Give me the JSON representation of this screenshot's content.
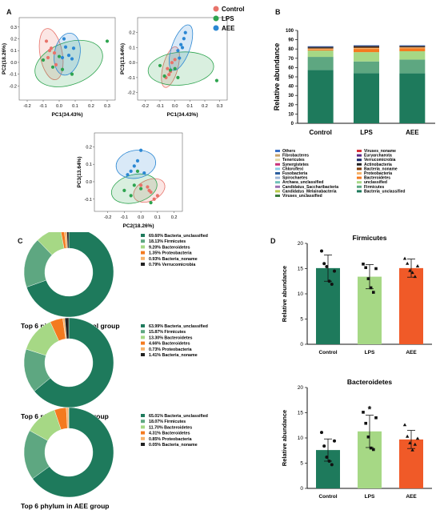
{
  "panel_labels": {
    "a": "A",
    "b": "B",
    "c": "C",
    "d": "D"
  },
  "group_colors": {
    "Control": "#e8736a",
    "LPS": "#2ea44f",
    "AEE": "#2b87d3"
  },
  "chart_data": [
    {
      "panel": "A",
      "type": "scatter",
      "xlabel": "PC1(34.43%)",
      "ylabel": "PC2(18.26%)",
      "xlim": [
        -0.25,
        0.35
      ],
      "ylim": [
        -0.32,
        0.38
      ],
      "xticks": [
        -0.2,
        -0.1,
        0.0,
        0.1,
        0.2,
        0.3
      ],
      "yticks": [
        -0.2,
        -0.1,
        0.0,
        0.1,
        0.2,
        0.3
      ],
      "legend": [
        "Control",
        "LPS",
        "AEE"
      ],
      "series": [
        {
          "name": "Control",
          "points": [
            [
              -0.08,
              0.18
            ],
            [
              -0.05,
              0.12
            ],
            [
              -0.03,
              0.08
            ],
            [
              -0.07,
              0.04
            ],
            [
              -0.02,
              -0.02
            ],
            [
              -0.06,
              0.1
            ]
          ],
          "ellipse": {
            "cx": -0.05,
            "cy": 0.07,
            "rx": 0.07,
            "ry": 0.22,
            "rot": -10
          }
        },
        {
          "name": "LPS",
          "points": [
            [
              -0.1,
              0.02
            ],
            [
              0.02,
              -0.06
            ],
            [
              0.08,
              -0.1
            ],
            [
              0.3,
              0.18
            ],
            [
              -0.04,
              -0.04
            ],
            [
              0.0,
              0.05
            ]
          ],
          "ellipse": {
            "cx": 0.06,
            "cy": -0.01,
            "rx": 0.22,
            "ry": 0.18,
            "rot": -20
          }
        },
        {
          "name": "AEE",
          "points": [
            [
              0.02,
              0.04
            ],
            [
              0.06,
              0.06
            ],
            [
              0.09,
              0.12
            ],
            [
              0.04,
              0.13
            ],
            [
              0.08,
              0.03
            ],
            [
              0.03,
              0.2
            ]
          ],
          "ellipse": {
            "cx": 0.05,
            "cy": 0.07,
            "rx": 0.08,
            "ry": 0.18,
            "rot": 10
          }
        }
      ]
    },
    {
      "panel": "A",
      "type": "scatter",
      "xlabel": "PC1(34.43%)",
      "ylabel": "PC3(13.64%)",
      "xlim": [
        -0.25,
        0.35
      ],
      "ylim": [
        -0.25,
        0.3
      ],
      "xticks": [
        -0.2,
        -0.1,
        0.0,
        0.1,
        0.2,
        0.3
      ],
      "yticks": [
        -0.2,
        -0.1,
        0.0,
        0.1,
        0.2
      ],
      "series": [
        {
          "name": "Control",
          "points": [
            [
              -0.05,
              -0.04
            ],
            [
              -0.03,
              -0.06
            ],
            [
              -0.02,
              0.0
            ],
            [
              -0.06,
              -0.1
            ],
            [
              0.0,
              0.02
            ],
            [
              -0.04,
              -0.08
            ]
          ],
          "ellipse": {
            "cx": -0.03,
            "cy": -0.03,
            "rx": 0.05,
            "ry": 0.14,
            "rot": 15
          }
        },
        {
          "name": "LPS",
          "points": [
            [
              -0.1,
              -0.02
            ],
            [
              -0.07,
              -0.09
            ],
            [
              0.02,
              -0.1
            ],
            [
              0.28,
              -0.12
            ],
            [
              -0.03,
              -0.05
            ],
            [
              0.0,
              -0.04
            ]
          ],
          "ellipse": {
            "cx": 0.04,
            "cy": -0.04,
            "rx": 0.22,
            "ry": 0.11,
            "rot": -5
          }
        },
        {
          "name": "AEE",
          "points": [
            [
              0.02,
              0.08
            ],
            [
              0.04,
              0.12
            ],
            [
              0.06,
              0.16
            ],
            [
              0.03,
              0.03
            ],
            [
              0.07,
              0.2
            ],
            [
              0.05,
              0.1
            ]
          ],
          "ellipse": {
            "cx": 0.04,
            "cy": 0.1,
            "rx": 0.06,
            "ry": 0.16,
            "rot": 20
          }
        }
      ]
    },
    {
      "panel": "A",
      "type": "scatter",
      "xlabel": "PC2(18.26%)",
      "ylabel": "PC3(13.64%)",
      "xlim": [
        -0.28,
        0.25
      ],
      "ylim": [
        -0.17,
        0.28
      ],
      "xticks": [
        -0.2,
        -0.1,
        0.0,
        0.1,
        0.2
      ],
      "yticks": [
        -0.1,
        0.0,
        0.1,
        0.2
      ],
      "series": [
        {
          "name": "Control",
          "points": [
            [
              0.04,
              -0.03
            ],
            [
              0.06,
              -0.06
            ],
            [
              0.1,
              -0.08
            ],
            [
              0.0,
              -0.02
            ],
            [
              0.08,
              -0.1
            ],
            [
              0.05,
              -0.05
            ]
          ],
          "ellipse": {
            "cx": 0.05,
            "cy": -0.05,
            "rx": 0.1,
            "ry": 0.06,
            "rot": -25
          }
        },
        {
          "name": "LPS",
          "points": [
            [
              -0.1,
              -0.05
            ],
            [
              -0.04,
              -0.02
            ],
            [
              0.0,
              -0.04
            ],
            [
              -0.02,
              0.06
            ],
            [
              0.06,
              -0.12
            ],
            [
              -0.06,
              -0.08
            ]
          ],
          "ellipse": {
            "cx": -0.04,
            "cy": -0.04,
            "rx": 0.14,
            "ry": 0.08,
            "rot": -15
          }
        },
        {
          "name": "AEE",
          "points": [
            [
              -0.06,
              0.06
            ],
            [
              -0.02,
              0.12
            ],
            [
              0.0,
              0.18
            ],
            [
              -0.04,
              0.09
            ],
            [
              0.02,
              0.05
            ],
            [
              -0.08,
              0.04
            ]
          ],
          "ellipse": {
            "cx": -0.03,
            "cy": 0.1,
            "rx": 0.12,
            "ry": 0.08,
            "rot": -10
          }
        }
      ]
    },
    {
      "panel": "B",
      "type": "bar",
      "stacked": true,
      "categories": [
        "Control",
        "LPS",
        "AEE"
      ],
      "ylabel": "Relative abundance",
      "ylim": [
        0,
        100
      ],
      "yticks": [
        0,
        10,
        20,
        30,
        40,
        50,
        60,
        70,
        80,
        90,
        100
      ],
      "series": [
        {
          "name": "Bacteria_unclassified",
          "values": [
            57.5,
            54.0,
            53.8
          ],
          "color": "#1e7a5c"
        },
        {
          "name": "Firmicutes",
          "values": [
            14.0,
            12.6,
            14.8
          ],
          "color": "#5ea781"
        },
        {
          "name": "unclassified",
          "values": [
            6.8,
            10.0,
            9.0
          ],
          "color": "#a6d885"
        },
        {
          "name": "Bacteroidetes",
          "values": [
            1.2,
            3.5,
            3.3
          ],
          "color": "#f47a1f"
        },
        {
          "name": "Proteobacteria",
          "values": [
            0.9,
            1.0,
            0.8
          ],
          "color": "#f6b26b"
        },
        {
          "name": "Bacteria_noname",
          "values": [
            0.8,
            1.1,
            0.6
          ],
          "color": "#7a3b0c"
        },
        {
          "name": "Actinobacteria",
          "values": [
            0.8,
            0.9,
            0.8
          ],
          "color": "#222222"
        },
        {
          "name": "Verrucomicrobia",
          "values": [
            0.7,
            0.5,
            0.4
          ],
          "color": "#1b2a6b"
        },
        {
          "name": "Others",
          "values": [
            0.3,
            0.4,
            0.5
          ],
          "color": "#3a6fc4"
        }
      ],
      "legend_left": [
        {
          "name": "Others",
          "color": "#3a6fc4"
        },
        {
          "name": "Fibrobacteres",
          "color": "#c9a46b"
        },
        {
          "name": "Tenericutes",
          "color": "#e4d9a5"
        },
        {
          "name": "Synergistetes",
          "color": "#c8327a"
        },
        {
          "name": "Chloroflexi",
          "color": "#8ed1e8"
        },
        {
          "name": "Fusobacteria",
          "color": "#2b5e9e"
        },
        {
          "name": "Spirochaetes",
          "color": "#9fb7d8"
        },
        {
          "name": "Archaea_unclassified",
          "color": "#6fc0b8"
        },
        {
          "name": "Candidatus_Saccharibacteria",
          "color": "#9c6fb1"
        },
        {
          "name": "Candidatus_Melainabacteria",
          "color": "#b7c94a"
        },
        {
          "name": "Viruses_unclassified",
          "color": "#3c7a3e"
        }
      ],
      "legend_right": [
        {
          "name": "Viruses_noname",
          "color": "#d8323a"
        },
        {
          "name": "Euryarchaeota",
          "color": "#5b2a86"
        },
        {
          "name": "Verrucomicrobia",
          "color": "#1b2a6b"
        },
        {
          "name": "Actinobacteria",
          "color": "#222222"
        },
        {
          "name": "Bacteria_noname",
          "color": "#7a3b0c"
        },
        {
          "name": "Proteobacteria",
          "color": "#f6b26b"
        },
        {
          "name": "Bacteroidetes",
          "color": "#f47a1f"
        },
        {
          "name": "unclassified",
          "color": "#a6d885"
        },
        {
          "name": "Firmicutes",
          "color": "#5ea781"
        },
        {
          "name": "Bacteria_unclassified",
          "color": "#1e7a5c"
        }
      ]
    },
    {
      "panel": "C",
      "type": "pie",
      "title": "Top 6 phylum in Control group",
      "slices": [
        {
          "pct": 69.6,
          "label": "Bacteria_unclassified",
          "color": "#1e7a5c"
        },
        {
          "pct": 18.13,
          "label": "Firmicutes",
          "color": "#5ea781"
        },
        {
          "pct": 9.2,
          "label": "Bacteroidetes",
          "color": "#a6d885"
        },
        {
          "pct": 1.35,
          "label": "Proteobacteria",
          "color": "#f47a1f"
        },
        {
          "pct": 0.93,
          "label": "Bacteria_noname",
          "color": "#f6b26b"
        },
        {
          "pct": 0.79,
          "label": "Verrucomicrobia",
          "color": "#222222"
        }
      ],
      "legend": [
        "69.60%  Bacteria_unclassified",
        "18.13%  Firmicutes",
        "9.20%  Bacteroidetes",
        "1.35%  Proteobacteria",
        "0.93%  Bacteria_noname",
        "0.79%  Verrucomicrobia"
      ]
    },
    {
      "panel": "C",
      "type": "pie",
      "title": "Top 6 phylum in LPS group",
      "slices": [
        {
          "pct": 63.99,
          "label": "Bacteria_unclassified",
          "color": "#1e7a5c"
        },
        {
          "pct": 15.87,
          "label": "Firmicutes",
          "color": "#5ea781"
        },
        {
          "pct": 13.3,
          "label": "Bacteroidetes",
          "color": "#a6d885"
        },
        {
          "pct": 4.66,
          "label": "Bacteroidetes",
          "color": "#f47a1f"
        },
        {
          "pct": 0.73,
          "label": "Proteobacteria",
          "color": "#f6b26b"
        },
        {
          "pct": 1.41,
          "label": "Bacteria_noname",
          "color": "#222222"
        }
      ],
      "legend": [
        "63.99%  Bacteria_unclassified",
        "15.87%  Firmicutes",
        "13.30%  Bacteroidetes",
        "4.66%  Bacteroidetes",
        "0.73%  Proteobacteria",
        "1.41%  Bacteria_noname"
      ]
    },
    {
      "panel": "C",
      "type": "pie",
      "title": "Top 6 phylum in AEE group",
      "slices": [
        {
          "pct": 65.01,
          "label": "Bacteria_unclassified",
          "color": "#1e7a5c"
        },
        {
          "pct": 18.07,
          "label": "Firmicutes",
          "color": "#5ea781"
        },
        {
          "pct": 11.7,
          "label": "Bacteroidetes",
          "color": "#a6d885"
        },
        {
          "pct": 4.31,
          "label": "Bacteroidetes",
          "color": "#f47a1f"
        },
        {
          "pct": 0.85,
          "label": "Proteobacteria",
          "color": "#f6b26b"
        },
        {
          "pct": 0.05,
          "label": "Bacteria_noname",
          "color": "#222222"
        }
      ],
      "legend": [
        "65.01%  Bacteria_unclassified",
        "18.07%  Firmicutes",
        "11.70%  Bacteroidetes",
        "4.31%  Bacteroidetes",
        "0.85%  Proteobacteria",
        "0.05%  Bacteria_noname"
      ]
    },
    {
      "panel": "D",
      "type": "bar",
      "title": "Firmicutes",
      "ylabel": "Relative abundance",
      "categories": [
        "Control",
        "LPS",
        "AEE"
      ],
      "ylim": [
        0,
        20
      ],
      "yticks": [
        0,
        5,
        10,
        15,
        20
      ],
      "values": [
        15.1,
        13.4,
        15.1
      ],
      "errors": [
        2.6,
        2.4,
        1.8
      ],
      "colors": [
        "#1e7a5c",
        "#a6d885",
        "#f05a28"
      ],
      "points": [
        [
          18.5,
          16.0,
          15.4,
          12.5,
          11.9,
          14.5
        ],
        [
          15.9,
          15.2,
          13.0,
          11.2,
          10.3,
          15.0
        ],
        [
          17.0,
          16.0,
          14.6,
          14.2,
          13.4,
          15.5
        ]
      ]
    },
    {
      "panel": "D",
      "type": "bar",
      "title": "Bacteroidetes",
      "ylabel": "Relative abundance",
      "categories": [
        "Control",
        "LPS",
        "AEE"
      ],
      "ylim": [
        0,
        20
      ],
      "yticks": [
        0,
        5,
        10,
        15,
        20
      ],
      "values": [
        7.6,
        11.3,
        9.7
      ],
      "errors": [
        2.2,
        3.2,
        1.8
      ],
      "colors": [
        "#1e7a5c",
        "#a6d885",
        "#f05a28"
      ],
      "points": [
        [
          11.1,
          8.4,
          6.2,
          5.4,
          4.7,
          9.4
        ],
        [
          15.1,
          12.9,
          10.2,
          8.0,
          7.7,
          14.0
        ],
        [
          12.6,
          10.3,
          9.0,
          7.6,
          8.7,
          9.9
        ]
      ],
      "annotations": [
        {
          "category": "LPS",
          "text": "*"
        }
      ]
    }
  ]
}
